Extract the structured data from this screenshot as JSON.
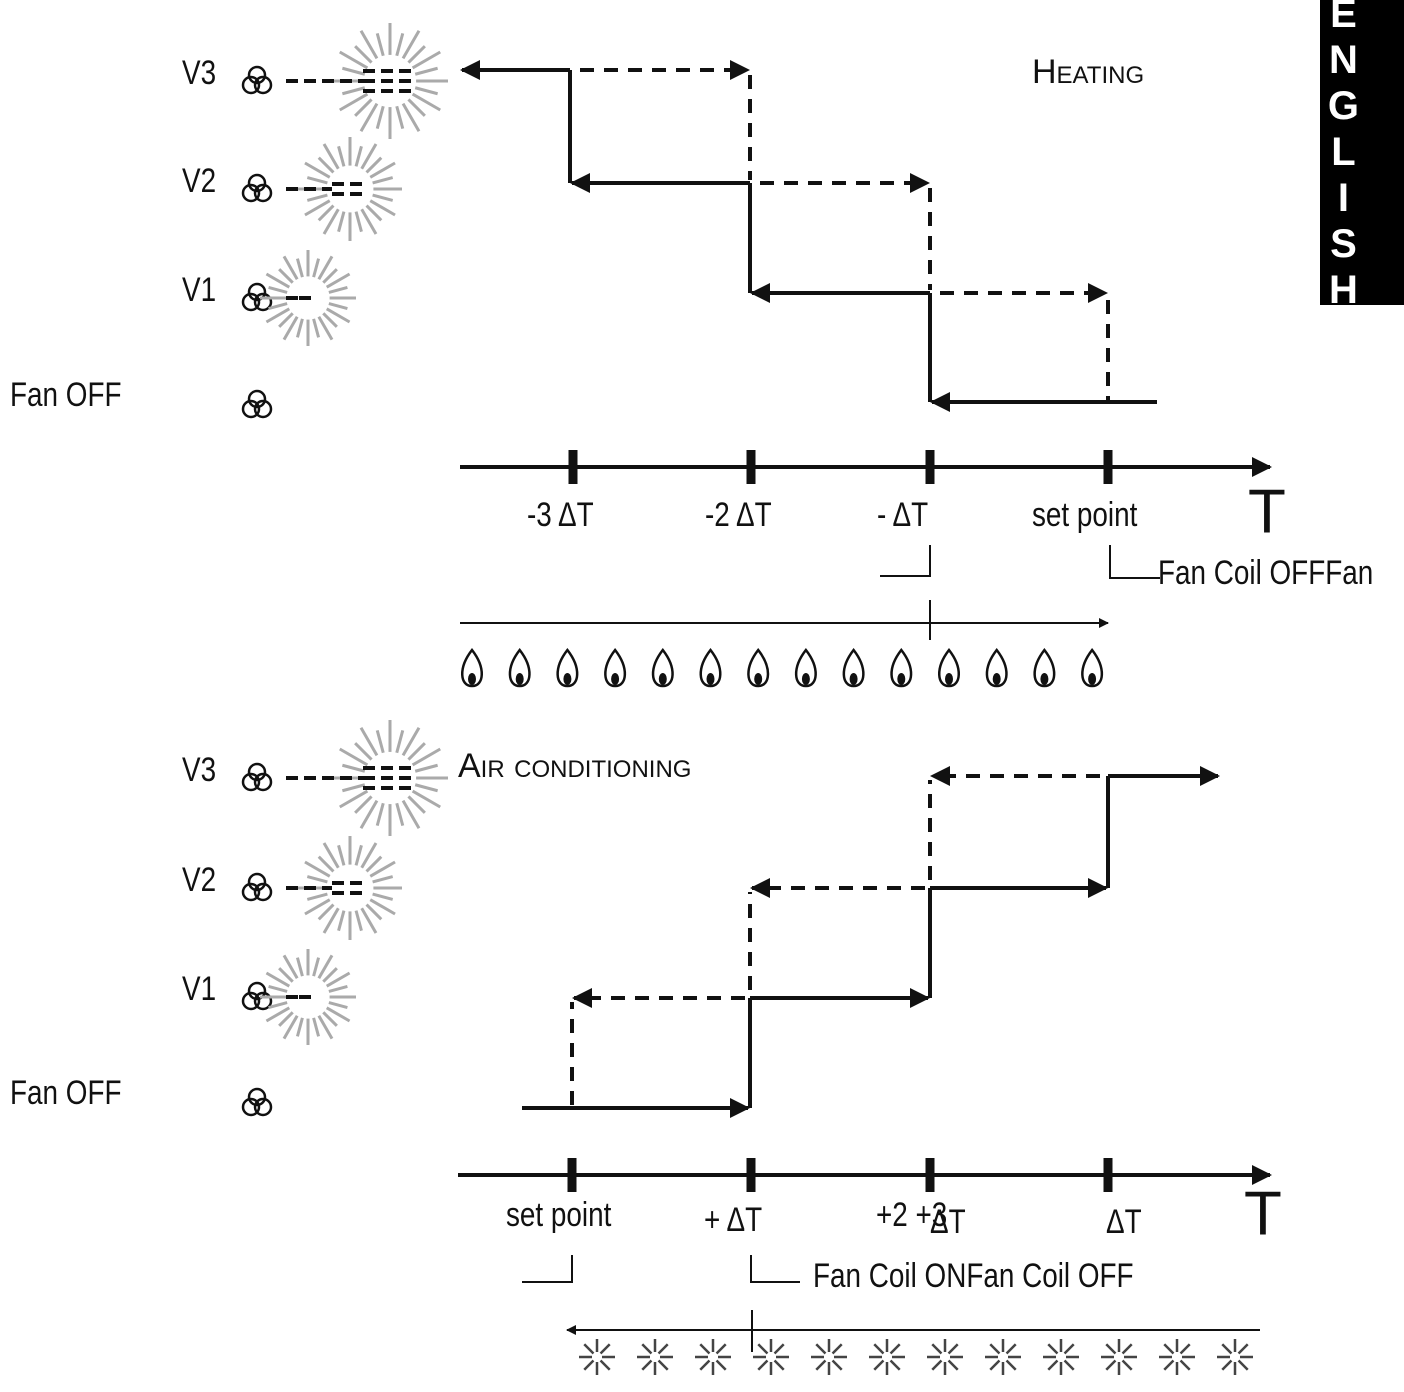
{
  "tab": "ENGLISH",
  "heating": {
    "title": "Heating",
    "levels": [
      "V3",
      "V2",
      "V1",
      "Fan OFF"
    ],
    "ticks": [
      "-3 ΔT",
      "-2 ΔT",
      "- ΔT",
      "set point"
    ],
    "axis": "T",
    "note": "Fan Coil  OFFFan"
  },
  "cooling": {
    "title": "Air conditioning",
    "levels": [
      "V3",
      "V2",
      "V1",
      "Fan OFF"
    ],
    "ticks": [
      "set point",
      "+ ΔT",
      "+2 +3",
      "ΔT",
      "ΔT"
    ],
    "axis": "T",
    "note": "Fan Coil  ONFan Coil OFF"
  }
}
